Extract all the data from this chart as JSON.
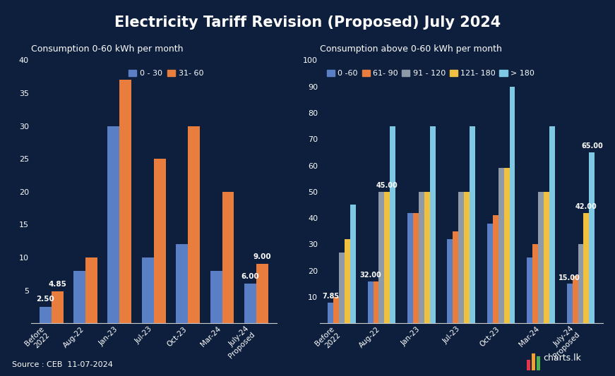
{
  "title": "Electricity Tariff Revision (Proposed) July 2024",
  "bg_color": "#0d1f3c",
  "header_color": "#102060",
  "title_color": "#ffffff",
  "subtitle1": "Consumption 0-60 kWh per month",
  "subtitle2": "Consumption above 0-60 kWh per month",
  "source_text": "Source : CEB  11-07-2024",
  "left_categories": [
    "Before\n2022",
    "Aug-22",
    "Jan-23",
    "Jul-23",
    "Oct-23",
    "Mar-24",
    "July-24\nProposed"
  ],
  "left_series": {
    "0 - 30": [
      2.5,
      8.0,
      30.0,
      10.0,
      12.0,
      8.0,
      6.0
    ],
    "31- 60": [
      4.85,
      10.0,
      37.0,
      25.0,
      30.0,
      20.0,
      9.0
    ]
  },
  "left_colors": [
    "#5b7fc4",
    "#e87d3e"
  ],
  "left_ylim": [
    0,
    40
  ],
  "left_yticks": [
    0,
    5,
    10,
    15,
    20,
    25,
    30,
    35,
    40
  ],
  "right_categories": [
    "Before\n2022",
    "Aug-22",
    "Jan-23",
    "Jul-23",
    "Oct-23",
    "Mar-24",
    "July-24\nProposed"
  ],
  "right_series": {
    "0 -60": [
      8.0,
      16.0,
      42.0,
      32.0,
      38.0,
      25.0,
      15.0
    ],
    "61- 90": [
      10.0,
      16.0,
      42.0,
      35.0,
      41.0,
      30.0,
      18.0
    ],
    "91 - 120": [
      27.0,
      50.0,
      50.0,
      50.0,
      59.0,
      50.0,
      30.0
    ],
    "121- 180": [
      32.0,
      50.0,
      50.0,
      50.0,
      59.0,
      50.0,
      42.0
    ],
    "> 180": [
      45.0,
      75.0,
      75.0,
      75.0,
      90.0,
      75.0,
      65.0
    ]
  },
  "right_colors": [
    "#5b7fc4",
    "#e87d3e",
    "#8e9aa8",
    "#f0c040",
    "#7ec8e3"
  ],
  "right_ylim": [
    0,
    100
  ],
  "right_yticks": [
    0,
    10,
    20,
    30,
    40,
    50,
    60,
    70,
    80,
    90,
    100
  ],
  "axis_color": "#ffffff",
  "tick_color": "#ffffff"
}
